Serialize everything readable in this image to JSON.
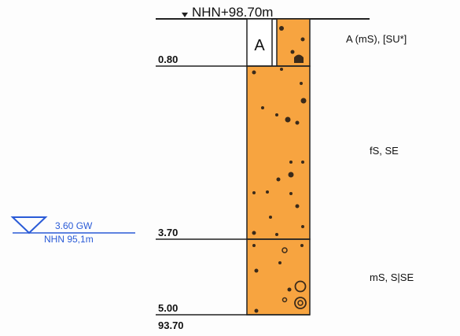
{
  "profile": {
    "top_label": "NHN+98.70m",
    "depth_labels": [
      "0.80",
      "3.70",
      "5.00"
    ],
    "bottom_elevation": "93.70",
    "layers": [
      {
        "code": "A",
        "description": "A (mS), [SU*]",
        "from_depth": 0.0,
        "to_depth": 0.8
      },
      {
        "code": "",
        "description": "fS, SE",
        "from_depth": 0.8,
        "to_depth": 3.7
      },
      {
        "code": "",
        "description": "mS, S|SE",
        "from_depth": 3.7,
        "to_depth": 5.0
      }
    ],
    "groundwater": {
      "depth_label": "3.60 GW",
      "elevation_label": "NHN 95,1m"
    }
  },
  "colors": {
    "soil_fill": "#f7a440",
    "line": "#222222",
    "groundwater": "#2a5bd7",
    "dot": "#3a2a1a"
  }
}
